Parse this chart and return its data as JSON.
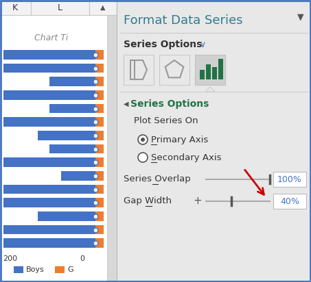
{
  "bar_blue": "#4472c4",
  "bar_orange": "#ed7d31",
  "title_color": "#2e7d8e",
  "series_options_color": "#217346",
  "panel_bg": "#e8e8e8",
  "chart_bg": "#ffffff",
  "header_bg": "#f2f2f2",
  "blue_bar_widths": [
    8,
    8,
    4,
    8,
    4,
    8,
    5,
    4,
    8,
    3,
    8,
    8,
    5,
    8,
    8
  ],
  "n_bars": 15,
  "border_color": "#4472c4",
  "scrollbar_color": "#c0c0c0",
  "text_dark": "#333333",
  "text_mid": "#555555",
  "text_light": "#888888",
  "slider_color": "#aaaaaa",
  "handle_color": "#555555",
  "box_bg": "#ffffff",
  "box_border": "#bbbbbb",
  "icon_green": "#217346",
  "icon_gray": "#999999",
  "icon_sel_bg": "#d0d0d0",
  "icon_bg": "#e8e8e8",
  "separator_color": "#cccccc",
  "radio_fill": "#555555",
  "chevron_color": "#4472c4",
  "arrow_red": "#cc0000"
}
